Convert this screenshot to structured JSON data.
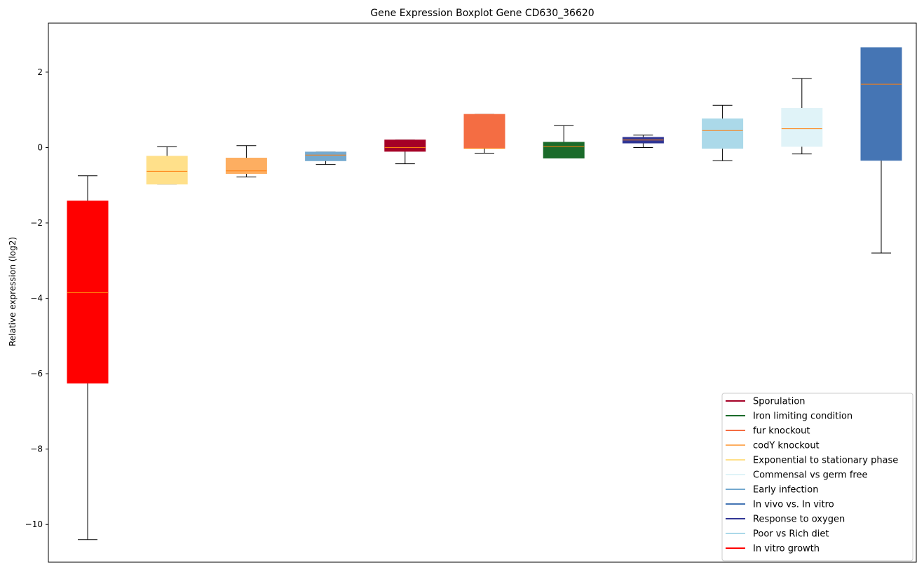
{
  "chart_data": {
    "type": "box",
    "title": "Gene Expression Boxplot Gene CD630_36620",
    "xlabel": "",
    "ylabel": "Relative expression (log2)",
    "ylim": [
      -11.0,
      3.3
    ],
    "yticks": [
      2,
      0,
      -2,
      -4,
      -6,
      -8,
      -10
    ],
    "ytick_labels": [
      "2",
      "0",
      "−2",
      "−4",
      "−6",
      "−8",
      "−10"
    ],
    "grid": false,
    "legend_position": "lower-right",
    "median_color": "#ff7f0e",
    "boxes": [
      {
        "series": "In vitro growth",
        "color": "#ff0000",
        "whisker_high": -0.75,
        "q3": -1.42,
        "median": -3.85,
        "q1": -6.25,
        "whisker_low": -10.4
      },
      {
        "series": "Exponential to stationary phase",
        "color": "#ffe08a",
        "whisker_high": 0.02,
        "q3": -0.23,
        "median": -0.63,
        "q1": -0.97,
        "whisker_low": -0.97
      },
      {
        "series": "codY knockout",
        "color": "#fdae61",
        "whisker_high": 0.05,
        "q3": -0.28,
        "median": -0.62,
        "q1": -0.69,
        "whisker_low": -0.78
      },
      {
        "series": "Early infection",
        "color": "#74a9cf",
        "whisker_high": -0.12,
        "q3": -0.12,
        "median": -0.2,
        "q1": -0.35,
        "whisker_low": -0.45
      },
      {
        "series": "Sporulation",
        "color": "#a50026",
        "whisker_high": 0.2,
        "q3": 0.2,
        "median": 0.0,
        "q1": -0.1,
        "whisker_low": -0.43
      },
      {
        "series": "fur knockout",
        "color": "#f46d43",
        "whisker_high": 0.88,
        "q3": 0.88,
        "median": -0.02,
        "q1": -0.02,
        "whisker_low": -0.15
      },
      {
        "series": "Iron limiting condition",
        "color": "#1a6b2a",
        "whisker_high": 0.58,
        "q3": 0.14,
        "median": 0.03,
        "q1": -0.28,
        "whisker_low": -0.28
      },
      {
        "series": "Response to oxygen",
        "color": "#313695",
        "whisker_high": 0.33,
        "q3": 0.27,
        "median": 0.2,
        "q1": 0.12,
        "whisker_low": 0.0
      },
      {
        "series": "Poor vs Rich diet",
        "color": "#abd9e9",
        "whisker_high": 1.12,
        "q3": 0.76,
        "median": 0.45,
        "q1": -0.02,
        "whisker_low": -0.35
      },
      {
        "series": "Commensal vs germ free",
        "color": "#e0f3f8",
        "whisker_high": 1.83,
        "q3": 1.04,
        "median": 0.5,
        "q1": 0.03,
        "whisker_low": -0.17
      },
      {
        "series": "In vivo vs. In vitro",
        "color": "#4575b4",
        "whisker_high": 2.65,
        "q3": 2.65,
        "median": 1.68,
        "q1": -0.34,
        "whisker_low": -2.8
      }
    ],
    "legend": [
      {
        "label": "Sporulation",
        "color": "#a50026"
      },
      {
        "label": "Iron limiting condition",
        "color": "#1a6b2a"
      },
      {
        "label": "fur knockout",
        "color": "#f46d43"
      },
      {
        "label": "codY knockout",
        "color": "#fdae61"
      },
      {
        "label": "Exponential to stationary phase",
        "color": "#ffe08a"
      },
      {
        "label": "Commensal vs germ free",
        "color": "#e0f3f8"
      },
      {
        "label": "Early infection",
        "color": "#74a9cf"
      },
      {
        "label": "In vivo vs. In vitro",
        "color": "#4575b4"
      },
      {
        "label": "Response to oxygen",
        "color": "#313695"
      },
      {
        "label": "Poor vs Rich diet",
        "color": "#abd9e9"
      },
      {
        "label": "In vitro growth",
        "color": "#ff0000"
      }
    ]
  }
}
